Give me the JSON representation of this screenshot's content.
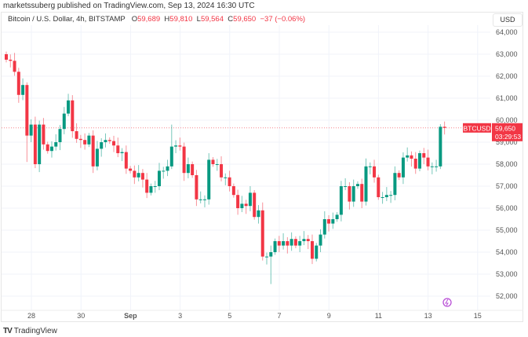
{
  "header": {
    "publisher": "marketssuberg published on TradingView.com, Sep 13, 2024 16:30 UTC"
  },
  "legend": {
    "symbol": "Bitcoin / U.S. Dollar, 4h, BITSTAMP",
    "o_label": "O",
    "o": "59,689",
    "h_label": "H",
    "h": "59,810",
    "l_label": "L",
    "l": "59,564",
    "c_label": "C",
    "c": "59,650",
    "change": "−37 (−0.06%)"
  },
  "currency": "USD",
  "price_tag": {
    "symbol": "BTCUSD",
    "price": "59,650",
    "countdown": "03:29:53"
  },
  "footer": {
    "brand": "TradingView"
  },
  "colors": {
    "up": "#089981",
    "down": "#f23645",
    "accent": "#b84fd6"
  },
  "chart_data": {
    "type": "candlestick",
    "interval": "4h",
    "ylim": [
      51600,
      64400
    ],
    "y_ticks": [
      64000,
      63000,
      62000,
      61000,
      60000,
      59000,
      58000,
      57000,
      56000,
      55000,
      54000,
      53000,
      52000
    ],
    "y_tick_labels": [
      "64,000",
      "63,000",
      "62,000",
      "61,000",
      "60,000",
      "59,000",
      "58,000",
      "57,000",
      "56,000",
      "55,000",
      "54,000",
      "53,000",
      "52,000"
    ],
    "x_ticks": [
      {
        "label": "28",
        "day": 1
      },
      {
        "label": "30",
        "day": 3
      },
      {
        "label": "Sep",
        "day": 5
      },
      {
        "label": "3",
        "day": 7
      },
      {
        "label": "5",
        "day": 9
      },
      {
        "label": "7",
        "day": 11
      },
      {
        "label": "9",
        "day": 13
      },
      {
        "label": "11",
        "day": 15
      },
      {
        "label": "13",
        "day": 17
      },
      {
        "label": "15",
        "day": 19
      }
    ],
    "first_open": 63000,
    "closes": [
      62750,
      62700,
      62200,
      61150,
      61600,
      59300,
      59800,
      58000,
      59800,
      58900,
      58600,
      58800,
      59000,
      59600,
      60300,
      60900,
      59500,
      59150,
      59100,
      58900,
      59300,
      57900,
      58700,
      59000,
      59100,
      59050,
      58850,
      58500,
      58550,
      57800,
      57700,
      57400,
      57600,
      57300,
      56700,
      57000,
      57000,
      57700,
      57700,
      57900,
      58800,
      58850,
      58800,
      57600,
      58000,
      57500,
      56400,
      56400,
      56400,
      58200,
      58000,
      58000,
      57400,
      57400,
      57000,
      56600,
      56000,
      56200,
      56100,
      56700,
      55600,
      55900,
      53800,
      53800,
      54000,
      54500,
      54300,
      54500,
      54300,
      54600,
      54300,
      54500,
      54600,
      54500,
      53700,
      54300,
      54800,
      55500,
      55300,
      55500,
      55700,
      57000,
      57000,
      56300,
      57000,
      57100,
      56300,
      57900,
      57900,
      57400,
      56500,
      56500,
      56600,
      56600,
      57600,
      57400,
      58300,
      58400,
      58250,
      57800,
      58500,
      58300,
      57900,
      57900,
      57900,
      59700,
      59650
    ],
    "last_price": 59650
  }
}
